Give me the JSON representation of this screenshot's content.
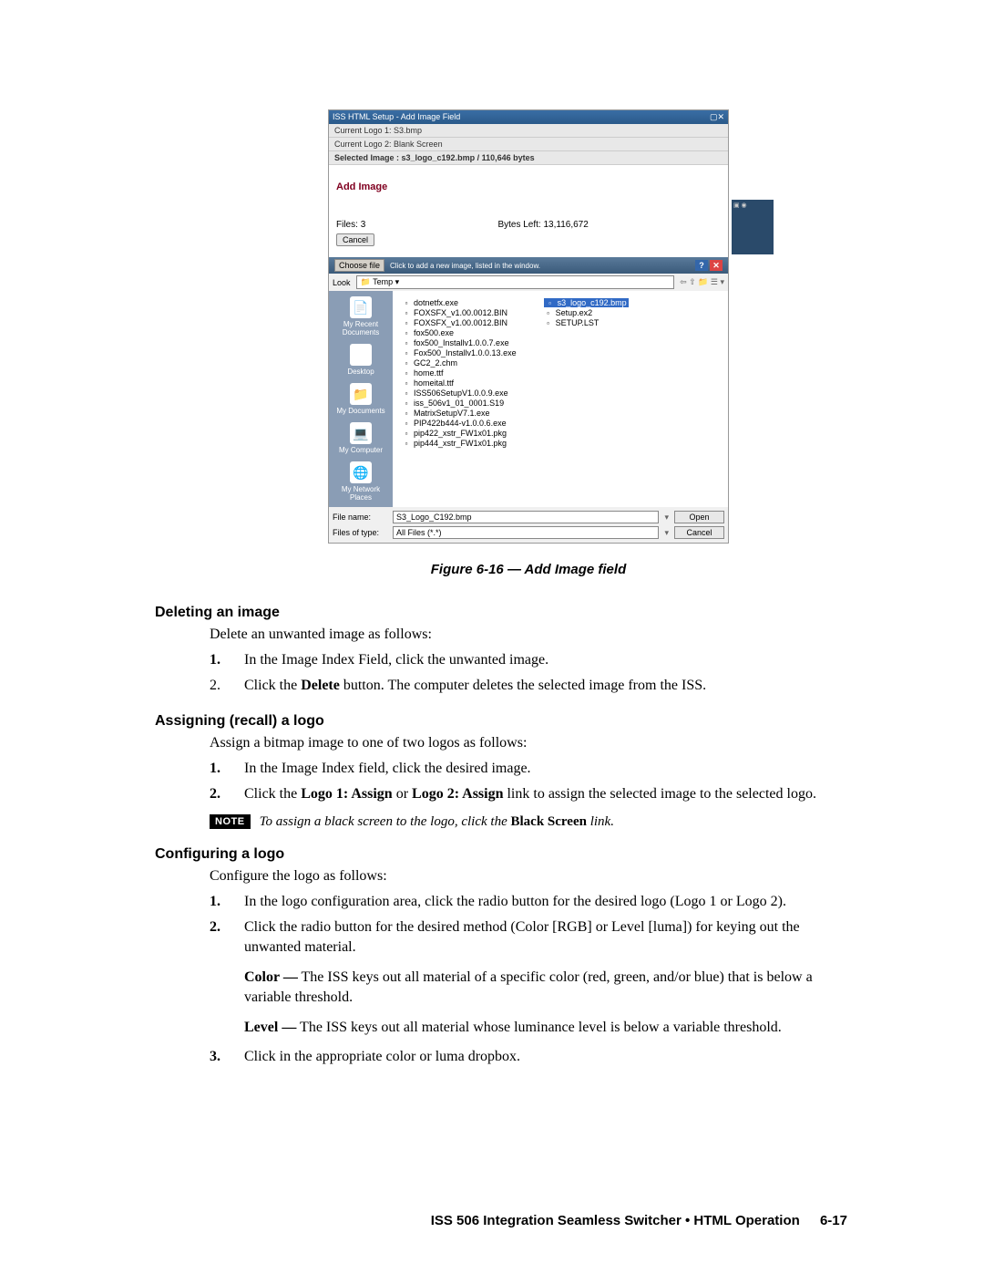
{
  "figure": {
    "caption": "Figure 6-16 — Add Image field",
    "titlebar_text": "ISS HTML Setup - Add Image Field",
    "header1": "Current Logo 1: S3.bmp",
    "header2": "Current Logo 2: Blank Screen",
    "selected_image": "Selected Image : s3_logo_c192.bmp / 110,646 bytes",
    "add_image_label": "Add Image",
    "files_label": "Files:",
    "files_count": "3",
    "bytes_left": "Bytes Left: 13,116,672",
    "cancel": "Cancel",
    "choose_file": "Choose file",
    "choose_hint": "Click to add a new image, listed in the window.",
    "look_label": "Look",
    "look_folder": "Temp",
    "places": [
      "My Recent Documents",
      "Desktop",
      "My Documents",
      "My Computer",
      "My Network Places"
    ],
    "place_icons": [
      "📄",
      "🖥",
      "📁",
      "💻",
      "🌐"
    ],
    "files_col1": [
      "dotnetfx.exe",
      "FOXSFX_v1.00.0012.BIN",
      "FOXSFX_v1.00.0012.BIN",
      "fox500.exe",
      "fox500_Installv1.0.0.7.exe",
      "Fox500_Installv1.0.0.13.exe",
      "GC2_2.chm",
      "home.ttf",
      "homeital.ttf",
      "ISS506SetupV1.0.0.9.exe",
      "iss_506v1_01_0001.S19",
      "MatrixSetupV7.1.exe",
      "PIP422b444-v1.0.0.6.exe",
      "pip422_xstr_FW1x01.pkg",
      "pip444_xstr_FW1x01.pkg"
    ],
    "files_col2": [
      "s3_logo_c192.bmp",
      "Setup.ex2",
      "SETUP.LST"
    ],
    "file_name_label": "File name:",
    "file_name_value": "S3_Logo_C192.bmp",
    "file_type_label": "Files of type:",
    "file_type_value": "All Files (*.*)",
    "open_btn": "Open",
    "cancel_btn": "Cancel"
  },
  "deleting": {
    "heading": "Deleting an image",
    "intro": "Delete an unwanted image as follows:",
    "step1": "In the Image Index Field, click the unwanted image.",
    "step2a": "Click the ",
    "step2b": "Delete",
    "step2c": " button.  The computer deletes the selected image from the ISS."
  },
  "assigning": {
    "heading": "Assigning (recall) a logo",
    "intro": "Assign a bitmap image to one of two logos as follows:",
    "step1": "In the Image Index field, click the desired image.",
    "step2a": "Click the ",
    "step2b": "Logo 1: Assign",
    "step2c": " or ",
    "step2d": "Logo 2: Assign",
    "step2e": " link to assign the selected image to the selected logo.",
    "note_badge": "NOTE",
    "note_a": "To assign a black screen to the logo, click the ",
    "note_b": "Black Screen",
    "note_c": " link."
  },
  "configuring": {
    "heading": "Configuring a logo",
    "intro": "Configure the logo as follows:",
    "step1": "In the logo configuration area, click the radio button for the desired logo (Logo 1 or Logo 2).",
    "step2": "Click the radio button for the desired method (Color [RGB] or Level [luma]) for keying out the unwanted material.",
    "color_para_a": "Color —",
    "color_para_b": " The ISS keys out all material of a specific color (red, green, and/or blue) that is below a variable threshold.",
    "level_para_a": "Level —",
    "level_para_b": " The ISS keys out all material whose luminance level is below a variable threshold.",
    "step3": "Click in the appropriate color or luma dropbox."
  },
  "footer": {
    "text": "ISS 506 Integration Seamless Switcher • HTML Operation",
    "page": "6-17"
  }
}
